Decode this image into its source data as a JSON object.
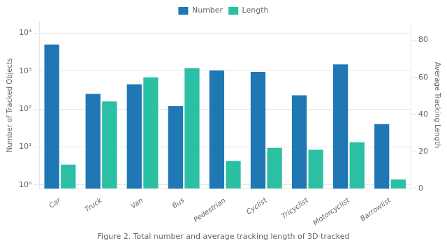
{
  "chart_data": {
    "type": "bar",
    "caption": "Figure 2. Total number and average tracking length of 3D tracked",
    "categories": [
      "Car",
      "Truck",
      "Van",
      "Bus",
      "Pedestrian",
      "Cyclist",
      "Tricyclist",
      "Motorcyclist",
      "Barrowlist"
    ],
    "series": [
      {
        "name": "Number",
        "color": "#1f77b4",
        "axis": "y",
        "values": [
          5000,
          250,
          450,
          120,
          1050,
          950,
          230,
          1500,
          40
        ]
      },
      {
        "name": "Length",
        "color": "#2bbfa4",
        "axis": "y2",
        "values": [
          13,
          47,
          60,
          65,
          15,
          22,
          21,
          25,
          5
        ]
      }
    ],
    "ylabel": "Number of Tracked Objects",
    "y2label": "Average Tracking Length",
    "log": "y",
    "ylim": [
      0.8,
      20000
    ],
    "yticks": [
      {
        "value": 1,
        "label": "10⁰"
      },
      {
        "value": 10,
        "label": "10¹"
      },
      {
        "value": 100,
        "label": "10²"
      },
      {
        "value": 1000,
        "label": "10³"
      },
      {
        "value": 10000,
        "label": "10⁴"
      }
    ],
    "y2lim": [
      0,
      90
    ],
    "y2ticks": [
      0,
      20,
      40,
      60,
      80
    ],
    "grid": true,
    "legend": "top"
  }
}
